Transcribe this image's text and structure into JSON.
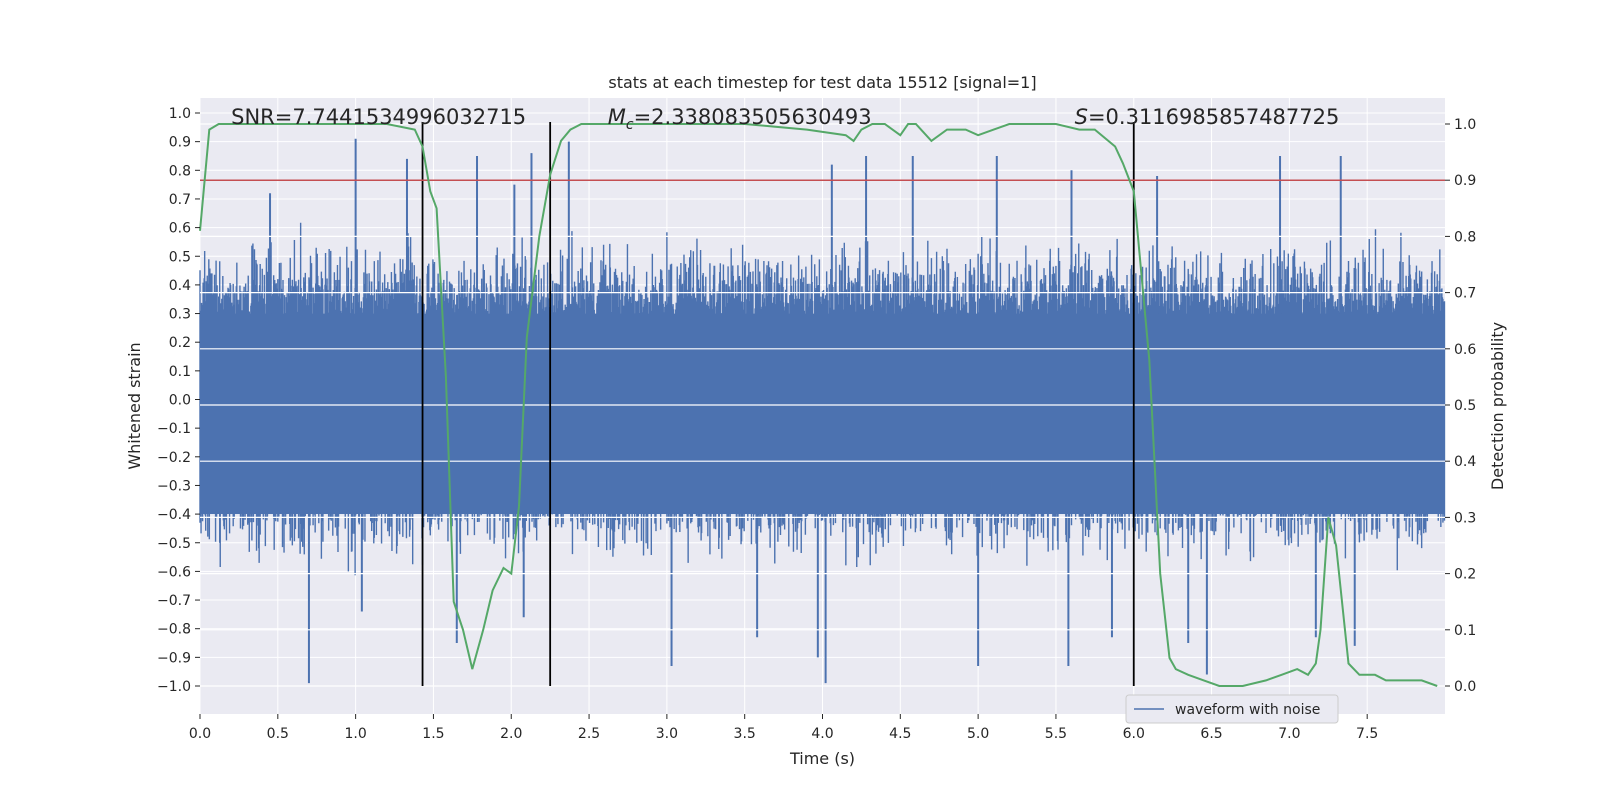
{
  "chart_data": {
    "type": "line",
    "title": "stats at each timestep for test data 15512 [signal=1]",
    "xlabel": "Time (s)",
    "ylabel": "Whitened strain",
    "y2label": "Detection probability",
    "xlim": [
      0.0,
      8.0
    ],
    "ylim": [
      -1.0,
      1.0
    ],
    "y2lim": [
      0.0,
      1.0
    ],
    "xticks": [
      0.0,
      0.5,
      1.0,
      1.5,
      2.0,
      2.5,
      3.0,
      3.5,
      4.0,
      4.5,
      5.0,
      5.5,
      6.0,
      6.5,
      7.0,
      7.5
    ],
    "yticks": [
      1.0,
      0.9,
      0.8,
      0.7,
      0.6,
      0.5,
      0.4,
      0.3,
      0.2,
      0.1,
      0.0,
      -0.1,
      -0.2,
      -0.3,
      -0.4,
      -0.5,
      -0.6,
      -0.7,
      -0.8,
      -0.9,
      -1.0
    ],
    "y2ticks": [
      1.0,
      0.9,
      0.8,
      0.7,
      0.6,
      0.5,
      0.4,
      0.3,
      0.2,
      0.1,
      0.0
    ],
    "tick_decimals": 1,
    "grid": true,
    "annotations": [
      {
        "text": "SNR=7.7441534996032715",
        "x": 0.2
      },
      {
        "prefix": "M",
        "subscript": "c",
        "text": "=2.338083505630493",
        "x": 2.62
      },
      {
        "prefix": "S",
        "text": "=0.3116985857487725",
        "x": 5.62
      }
    ],
    "legend": {
      "label": "waveform with noise",
      "position": "bottom-right"
    },
    "vertical_lines_x": [
      1.43,
      2.25,
      6.0
    ],
    "threshold_line": {
      "axis": "y2",
      "value": 0.9,
      "color": "#c44e52"
    },
    "waveform_envelope": {
      "description": "dense whitened strain samples spanning the full time range",
      "x_range": [
        0.0,
        8.0
      ],
      "typical_upper": 0.5,
      "typical_lower": -0.5,
      "upper_spikes": [
        {
          "x": 1.0,
          "y": 0.91
        },
        {
          "x": 2.37,
          "y": 0.9
        },
        {
          "x": 1.33,
          "y": 0.84
        },
        {
          "x": 2.13,
          "y": 0.86
        },
        {
          "x": 1.78,
          "y": 0.85
        },
        {
          "x": 4.28,
          "y": 0.85
        },
        {
          "x": 4.58,
          "y": 0.85
        },
        {
          "x": 5.12,
          "y": 0.85
        },
        {
          "x": 6.94,
          "y": 0.85
        },
        {
          "x": 7.33,
          "y": 0.85
        },
        {
          "x": 4.06,
          "y": 0.82
        },
        {
          "x": 6.15,
          "y": 0.78
        },
        {
          "x": 5.6,
          "y": 0.8
        },
        {
          "x": 2.02,
          "y": 0.75
        },
        {
          "x": 0.45,
          "y": 0.72
        }
      ],
      "lower_spikes": [
        {
          "x": 0.7,
          "y": -0.99
        },
        {
          "x": 4.02,
          "y": -0.99
        },
        {
          "x": 1.65,
          "y": -0.85
        },
        {
          "x": 6.47,
          "y": -0.96
        },
        {
          "x": 3.03,
          "y": -0.93
        },
        {
          "x": 5.0,
          "y": -0.93
        },
        {
          "x": 5.58,
          "y": -0.93
        },
        {
          "x": 3.97,
          "y": -0.9
        },
        {
          "x": 6.35,
          "y": -0.85
        },
        {
          "x": 7.42,
          "y": -0.86
        },
        {
          "x": 3.58,
          "y": -0.83
        },
        {
          "x": 2.08,
          "y": -0.76
        },
        {
          "x": 1.04,
          "y": -0.74
        },
        {
          "x": 7.17,
          "y": -0.83
        },
        {
          "x": 5.86,
          "y": -0.83
        }
      ]
    },
    "probability_series": {
      "axis": "y2",
      "color": "#55a868",
      "x": [
        0.0,
        0.06,
        0.12,
        0.3,
        0.6,
        0.9,
        1.2,
        1.38,
        1.43,
        1.48,
        1.52,
        1.58,
        1.63,
        1.69,
        1.75,
        1.82,
        1.88,
        1.95,
        2.0,
        2.05,
        2.1,
        2.18,
        2.25,
        2.32,
        2.38,
        2.45,
        2.6,
        3.0,
        3.5,
        3.9,
        4.15,
        4.2,
        4.25,
        4.32,
        4.4,
        4.5,
        4.55,
        4.6,
        4.7,
        4.8,
        4.92,
        5.0,
        5.1,
        5.2,
        5.35,
        5.5,
        5.65,
        5.75,
        5.88,
        5.93,
        6.0,
        6.1,
        6.17,
        6.23,
        6.27,
        6.35,
        6.45,
        6.55,
        6.7,
        6.85,
        6.95,
        7.05,
        7.12,
        7.17,
        7.2,
        7.25,
        7.3,
        7.38,
        7.45,
        7.55,
        7.62,
        7.7,
        7.85,
        7.95
      ],
      "y": [
        0.81,
        0.99,
        1.0,
        1.0,
        1.0,
        1.0,
        1.0,
        0.99,
        0.96,
        0.88,
        0.85,
        0.55,
        0.15,
        0.1,
        0.03,
        0.1,
        0.17,
        0.21,
        0.2,
        0.32,
        0.62,
        0.8,
        0.91,
        0.97,
        0.99,
        1.0,
        1.0,
        1.0,
        1.0,
        0.99,
        0.98,
        0.97,
        0.99,
        1.0,
        1.0,
        0.98,
        1.0,
        1.0,
        0.97,
        0.99,
        0.99,
        0.98,
        0.99,
        1.0,
        1.0,
        1.0,
        0.99,
        0.99,
        0.96,
        0.93,
        0.88,
        0.58,
        0.2,
        0.05,
        0.03,
        0.02,
        0.01,
        0.0,
        0.0,
        0.01,
        0.02,
        0.03,
        0.02,
        0.04,
        0.1,
        0.3,
        0.25,
        0.04,
        0.02,
        0.02,
        0.01,
        0.01,
        0.01,
        0.0
      ]
    }
  }
}
